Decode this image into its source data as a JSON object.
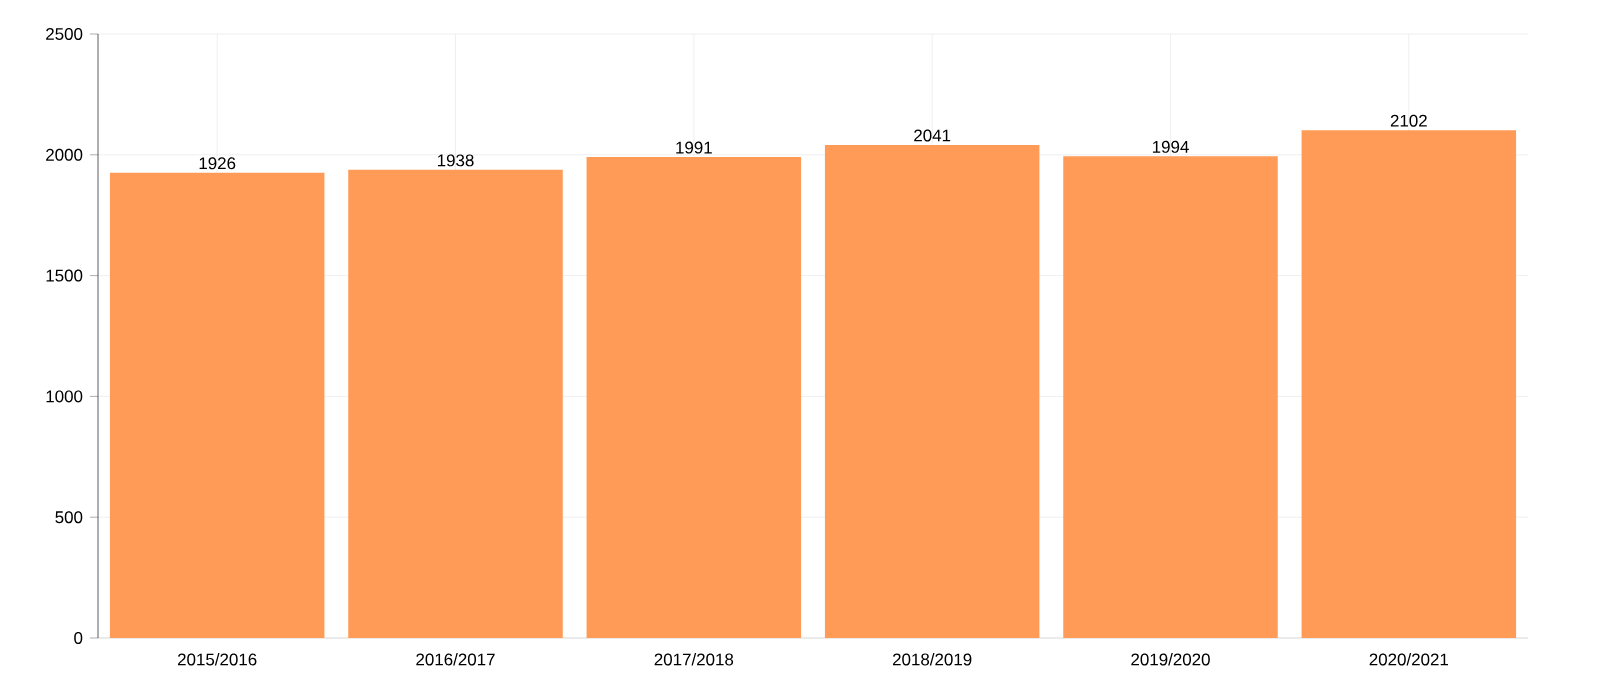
{
  "chart_data": {
    "type": "bar",
    "categories": [
      "2015/2016",
      "2016/2017",
      "2017/2018",
      "2018/2019",
      "2019/2020",
      "2020/2021"
    ],
    "values": [
      1926,
      1938,
      1991,
      2041,
      1994,
      2102
    ],
    "color": "#ff9b56",
    "ylim": [
      0,
      2500
    ],
    "yticks": [
      0,
      500,
      1000,
      1500,
      2000,
      2500
    ],
    "grid": true,
    "data_labels": true
  }
}
